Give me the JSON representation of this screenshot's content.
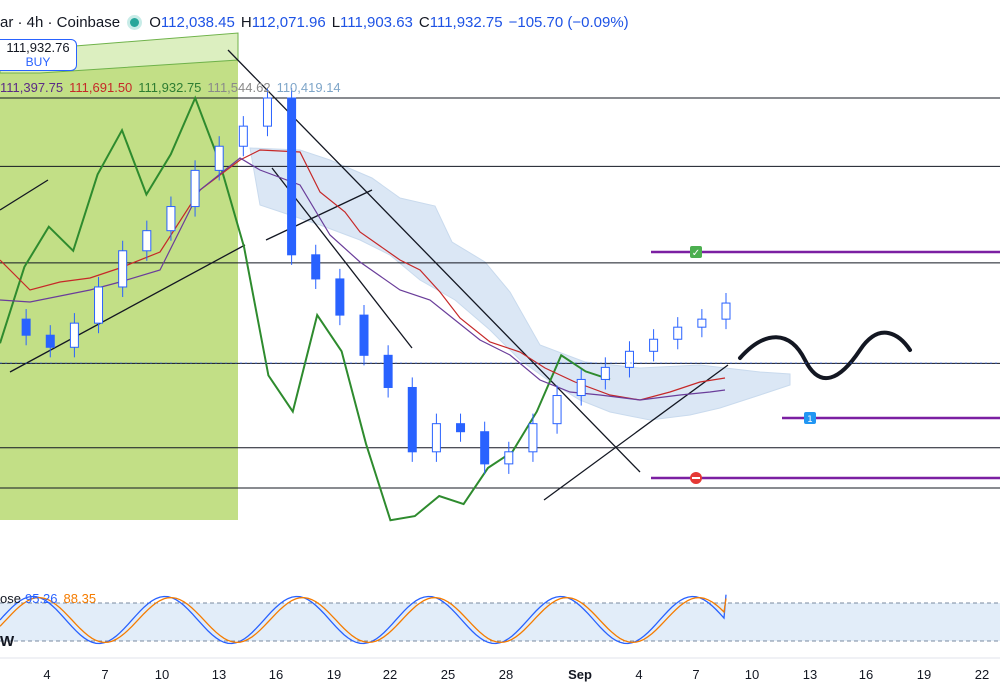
{
  "header": {
    "title": "ar · 4h · Coinbase",
    "open_label": "O",
    "open": "112,038.45",
    "high_label": "H",
    "high": "112,071.96",
    "low_label": "L",
    "low": "111,903.63",
    "close_label": "C",
    "close": "111,932.75",
    "change": "−105.70 (−0.09%)"
  },
  "buy_button": {
    "price": "111,932.76",
    "label": "BUY"
  },
  "ichimoku_values": [
    "111,397.75",
    "111,691.50",
    "111,932.75",
    "111,544.62",
    "110,419.14"
  ],
  "stoch": {
    "label": "ose",
    "k": "95.26",
    "d": "88.35",
    "w_label": "W"
  },
  "colors": {
    "candle": "#2962ff",
    "green_line": "#2e8b2e",
    "conversion": "#c62828",
    "base": "#6a3d9a",
    "cloud": "#bfd4ee",
    "highlight": "#9ccc3c",
    "stoch_k": "#2962ff",
    "stoch_d": "#f57c00",
    "marker": "#7b1fa2"
  },
  "chart_data": {
    "type": "line",
    "x_tick_labels": [
      "4",
      "7",
      "10",
      "13",
      "16",
      "19",
      "22",
      "25",
      "28",
      "Sep",
      "4",
      "7",
      "10",
      "13",
      "16",
      "19",
      "22"
    ],
    "series": [
      {
        "values": [
          111500,
          111100,
          110800,
          111400,
          112300,
          113200,
          113700,
          114300,
          115200,
          115800,
          116300,
          117000,
          113100,
          112500,
          111600,
          110600,
          109800,
          108200,
          108900,
          108700,
          107900,
          108200,
          108900,
          109600,
          110000,
          110300,
          110700,
          111000,
          111300,
          111500,
          111900
        ]
      },
      {
        "name": "Lagging",
        "values": [
          110900,
          112800,
          113800,
          113200,
          115100,
          116200,
          114600,
          115600,
          117000,
          115400,
          113300,
          110100,
          109200,
          111600,
          110700,
          108400,
          106500,
          106600,
          107100,
          106900,
          107800,
          108200,
          109200,
          110600,
          110200,
          110000
        ]
      }
    ],
    "price_levels": [
      117000,
      115300,
      112900,
      110400,
      108300,
      107300
    ],
    "trade_levels": [
      112800,
      109100,
      107500
    ],
    "stochastic": {
      "k": 95.26,
      "d": 88.35,
      "upper_band": 80,
      "lower_band": 20,
      "range": [
        0,
        100
      ]
    }
  }
}
